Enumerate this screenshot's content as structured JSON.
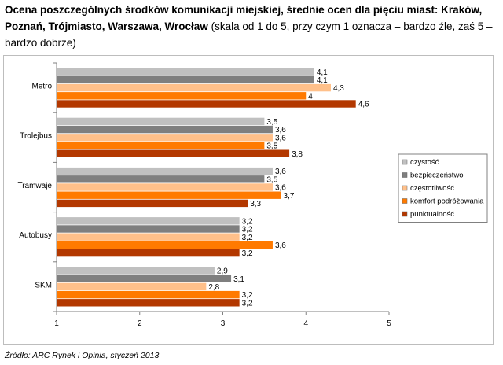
{
  "title": {
    "bold": "Ocena poszczególnych środków komunikacji miejskiej, średnie ocen dla pięciu miast: Kraków, Poznań, Trójmiasto, Warszawa, Wrocław",
    "normal": " (skala od 1 do 5, przy czym 1 oznacza – bardzo źle, zaś 5 – bardzo dobrze)"
  },
  "source": "Źródło: ARC Rynek i Opinia, styczeń 2013",
  "chart_data": {
    "type": "bar",
    "orientation": "horizontal",
    "categories": [
      "Metro",
      "Trolejbus",
      "Tramwaje",
      "Autobusy",
      "SKM"
    ],
    "series": [
      {
        "name": "czystość",
        "color": "#c0c0c0",
        "values": [
          4.1,
          3.5,
          3.6,
          3.2,
          2.9
        ]
      },
      {
        "name": "bezpieczeństwo",
        "color": "#7f7f7f",
        "values": [
          4.1,
          3.6,
          3.5,
          3.2,
          3.1
        ]
      },
      {
        "name": "częstotliwość",
        "color": "#ffc08a",
        "values": [
          4.3,
          3.6,
          3.6,
          3.2,
          2.8
        ]
      },
      {
        "name": "komfort podróżowania",
        "color": "#ff7a00",
        "values": [
          4.0,
          3.5,
          3.7,
          3.6,
          3.2
        ]
      },
      {
        "name": "punktualność",
        "color": "#b33800",
        "values": [
          4.6,
          3.8,
          3.3,
          3.2,
          3.2
        ]
      }
    ],
    "value_labels": [
      [
        "4,1",
        "4,1",
        "4,3",
        "4",
        "4,6"
      ],
      [
        "3,5",
        "3,6",
        "3,6",
        "3,5",
        "3,8"
      ],
      [
        "3,6",
        "3,5",
        "3,6",
        "3,7",
        "3,3"
      ],
      [
        "3,2",
        "3,2",
        "3,2",
        "3,6",
        "3,2"
      ],
      [
        "2,9",
        "3,1",
        "2,8",
        "3,2",
        "3,2"
      ]
    ],
    "xlim": [
      1,
      5
    ],
    "xticks": [
      "1",
      "2",
      "3",
      "4",
      "5"
    ],
    "xlabel": "",
    "ylabel": "",
    "legend": "right"
  }
}
